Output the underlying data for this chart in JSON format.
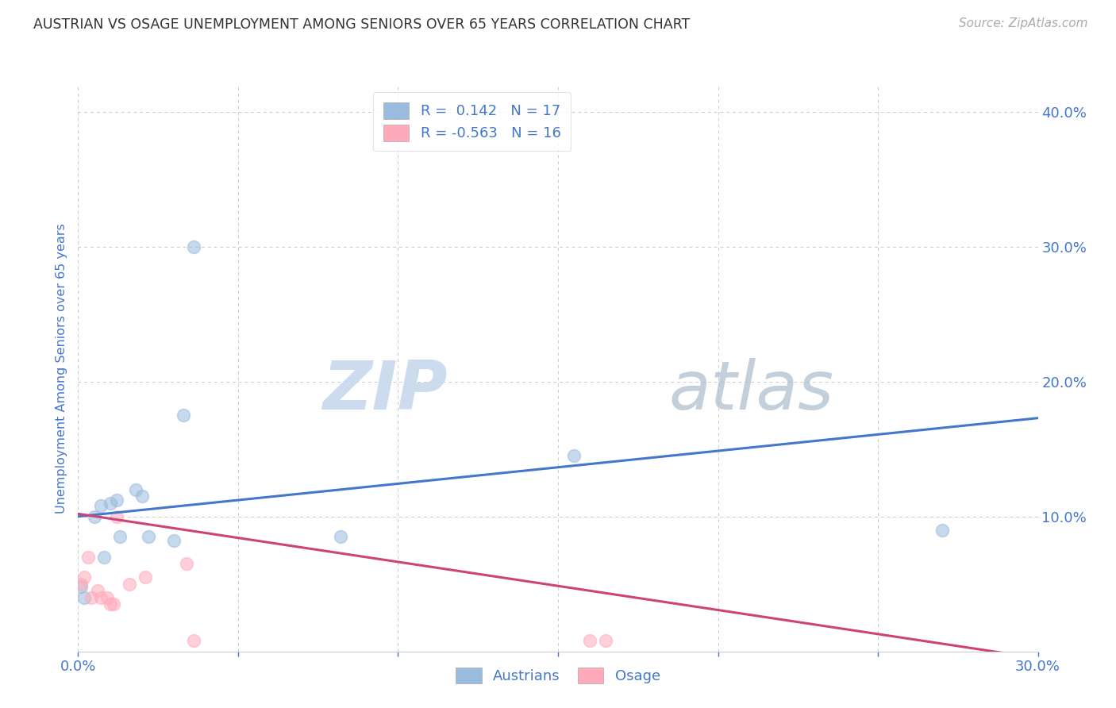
{
  "title": "AUSTRIAN VS OSAGE UNEMPLOYMENT AMONG SENIORS OVER 65 YEARS CORRELATION CHART",
  "source": "Source: ZipAtlas.com",
  "ylabel_label": "Unemployment Among Seniors over 65 years",
  "xlim": [
    0.0,
    0.3
  ],
  "ylim": [
    0.0,
    0.42
  ],
  "xtick_vals": [
    0.0,
    0.05,
    0.1,
    0.15,
    0.2,
    0.25,
    0.3
  ],
  "ytick_vals": [
    0.0,
    0.1,
    0.2,
    0.3,
    0.4
  ],
  "blue_R": 0.142,
  "blue_N": 17,
  "pink_R": -0.563,
  "pink_N": 16,
  "blue_color": "#99BBDD",
  "pink_color": "#FFAABB",
  "blue_line_color": "#4477CC",
  "pink_line_color": "#CC4477",
  "watermark_zip": "ZIP",
  "watermark_atlas": "atlas",
  "blue_points_x": [
    0.001,
    0.002,
    0.005,
    0.007,
    0.008,
    0.01,
    0.012,
    0.013,
    0.018,
    0.02,
    0.022,
    0.03,
    0.033,
    0.036,
    0.082,
    0.155,
    0.27
  ],
  "blue_points_y": [
    0.048,
    0.04,
    0.1,
    0.108,
    0.07,
    0.11,
    0.112,
    0.085,
    0.12,
    0.115,
    0.085,
    0.082,
    0.175,
    0.3,
    0.085,
    0.145,
    0.09
  ],
  "pink_points_x": [
    0.001,
    0.002,
    0.003,
    0.004,
    0.006,
    0.007,
    0.009,
    0.01,
    0.011,
    0.012,
    0.016,
    0.021,
    0.034,
    0.036,
    0.16,
    0.165
  ],
  "pink_points_y": [
    0.05,
    0.055,
    0.07,
    0.04,
    0.045,
    0.04,
    0.04,
    0.035,
    0.035,
    0.1,
    0.05,
    0.055,
    0.065,
    0.008,
    0.008,
    0.008
  ],
  "blue_trend_x0": 0.0,
  "blue_trend_x1": 0.3,
  "blue_trend_y0": 0.1,
  "blue_trend_y1": 0.173,
  "pink_trend_x0": 0.0,
  "pink_trend_x1": 0.3,
  "pink_trend_y0": 0.102,
  "pink_trend_y1": -0.005,
  "background_color": "#FFFFFF",
  "grid_color": "#CCCCCC",
  "title_color": "#333333",
  "axis_color": "#4477CC",
  "marker_size": 130
}
